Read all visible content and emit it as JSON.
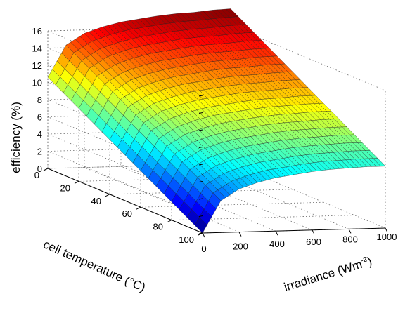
{
  "chart_data": {
    "type": "surface",
    "xlabel": "irradiance (Wm",
    "xlabel_sup": "-2",
    "xlabel_suffix": ")",
    "ylabel": "cell temperature (°C)",
    "zlabel": "efficiency (%)",
    "xlim": [
      0,
      1000
    ],
    "ylim": [
      0,
      100
    ],
    "zlim": [
      0,
      16
    ],
    "x_ticks": [
      "0",
      "200",
      "400",
      "600",
      "800",
      "1000"
    ],
    "y_ticks": [
      "0",
      "20",
      "40",
      "60",
      "80",
      "100"
    ],
    "z_ticks": [
      "0",
      "2",
      "4",
      "6",
      "8",
      "10",
      "12",
      "14",
      "16"
    ],
    "grid": true,
    "colormap": "jet",
    "surface_corners": [
      {
        "irradiance": 0,
        "cell_temperature": 0,
        "efficiency": 10.6
      },
      {
        "irradiance": 1000,
        "cell_temperature": 0,
        "efficiency": 18.0
      },
      {
        "irradiance": 0,
        "cell_temperature": 100,
        "efficiency": 0.0
      },
      {
        "irradiance": 1000,
        "cell_temperature": 100,
        "efficiency": 7.2
      }
    ],
    "irradiance_samples": [
      0,
      100,
      200,
      300,
      400,
      500,
      600,
      700,
      800,
      900,
      1000
    ],
    "efficiency_at_0C": [
      10.6,
      14.3,
      15.6,
      16.3,
      16.8,
      17.1,
      17.4,
      17.6,
      17.7,
      17.9,
      18.0
    ],
    "efficiency_at_100C": [
      0.0,
      3.7,
      5.0,
      5.7,
      6.2,
      6.5,
      6.8,
      7.0,
      7.1,
      7.2,
      7.2
    ]
  }
}
